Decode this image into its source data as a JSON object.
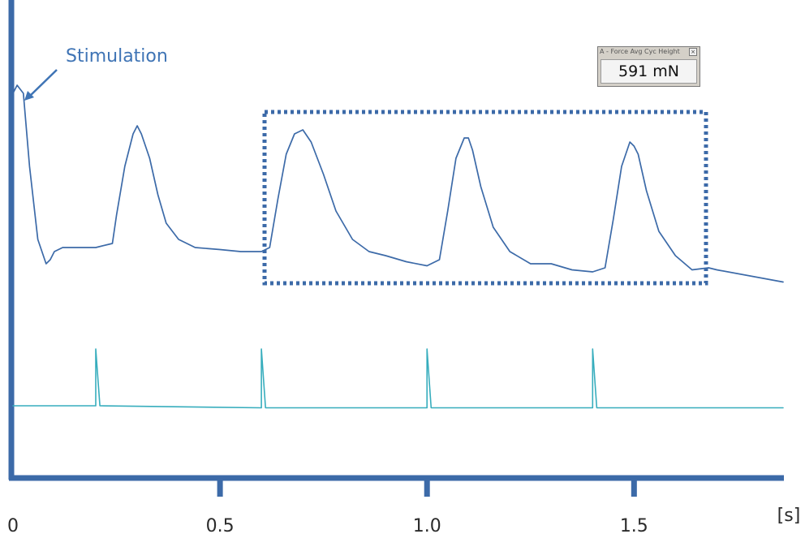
{
  "chart_data": {
    "type": "line",
    "title": "",
    "xlabel": "",
    "ylabel": "",
    "x_unit": "[s]",
    "x_ticks": [
      {
        "value": 0,
        "label": "0"
      },
      {
        "value": 0.5,
        "label": "0.5"
      },
      {
        "value": 1.0,
        "label": "1.0"
      },
      {
        "value": 1.5,
        "label": "1.5"
      }
    ],
    "xlim": [
      0,
      1.86
    ],
    "ylim": [
      0,
      1
    ],
    "grid": false,
    "colors": {
      "axis": "#3c6aa8",
      "force": "#3c6aa8",
      "stim": "#37adbd",
      "annotation": "#3f74b5"
    },
    "series": [
      {
        "key": "force",
        "x": [
          0.0,
          0.01,
          0.025,
          0.04,
          0.06,
          0.08,
          0.09,
          0.1,
          0.12,
          0.16,
          0.2,
          0.24,
          0.25,
          0.27,
          0.29,
          0.3,
          0.31,
          0.33,
          0.35,
          0.37,
          0.4,
          0.44,
          0.5,
          0.55,
          0.6,
          0.62,
          0.64,
          0.66,
          0.68,
          0.7,
          0.72,
          0.75,
          0.78,
          0.82,
          0.86,
          0.9,
          0.95,
          1.0,
          1.03,
          1.05,
          1.07,
          1.09,
          1.1,
          1.11,
          1.13,
          1.16,
          1.2,
          1.25,
          1.3,
          1.35,
          1.4,
          1.43,
          1.45,
          1.47,
          1.49,
          1.5,
          1.51,
          1.53,
          1.56,
          1.6,
          1.64,
          1.68,
          1.7,
          1.86
        ],
        "y": [
          0.81,
          0.83,
          0.81,
          0.63,
          0.45,
          0.39,
          0.4,
          0.42,
          0.43,
          0.43,
          0.43,
          0.44,
          0.51,
          0.63,
          0.71,
          0.73,
          0.71,
          0.65,
          0.56,
          0.49,
          0.45,
          0.43,
          0.425,
          0.42,
          0.42,
          0.43,
          0.55,
          0.66,
          0.71,
          0.72,
          0.69,
          0.61,
          0.52,
          0.45,
          0.42,
          0.41,
          0.395,
          0.385,
          0.4,
          0.52,
          0.65,
          0.7,
          0.7,
          0.67,
          0.58,
          0.48,
          0.42,
          0.39,
          0.39,
          0.375,
          0.37,
          0.38,
          0.5,
          0.63,
          0.69,
          0.68,
          0.66,
          0.57,
          0.47,
          0.41,
          0.375,
          0.38,
          0.375,
          0.345
        ]
      },
      {
        "key": "stim",
        "x": [
          0.0,
          0.2,
          0.2,
          0.21,
          0.6,
          0.6,
          0.61,
          1.0,
          1.0,
          1.01,
          1.4,
          1.4,
          1.41,
          1.86
        ],
        "y": [
          0.04,
          0.04,
          0.18,
          0.04,
          0.035,
          0.18,
          0.035,
          0.035,
          0.18,
          0.035,
          0.035,
          0.18,
          0.035,
          0.035
        ]
      }
    ],
    "annotations": {
      "stimulation_label": "Stimulation",
      "stimulation_x": 0.0,
      "highlighted_window_s": [
        0.6,
        1.68
      ]
    }
  },
  "readout_widget": {
    "title": "A - Force Avg Cyc Height",
    "value": "591 mN",
    "close_glyph": "×"
  }
}
